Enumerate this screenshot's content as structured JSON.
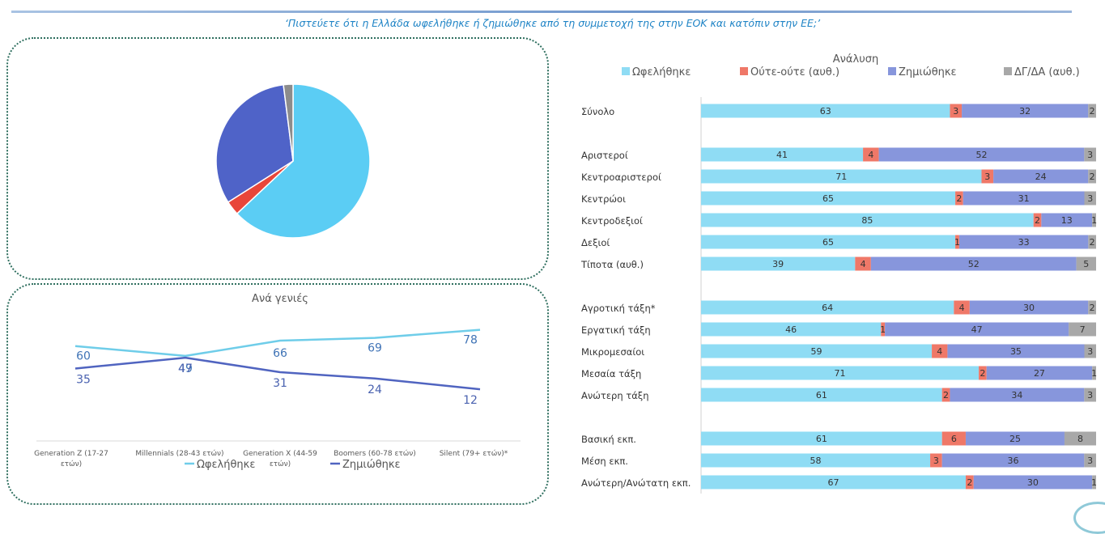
{
  "question": "‘Πιστεύετε ότι η Ελλάδα ωφελήθηκε ή ζημιώθηκε από τη συμμετοχή της στην ΕΟΚ και κατόπιν στην ΕΕ;’",
  "colors": {
    "benefited": "#5bcdf4",
    "neither": "#e8463a",
    "harmed": "#4f63c8",
    "dk": "#8c8c8c",
    "bar_benefited": "#8fdcf4",
    "bar_neither": "#ef7868",
    "bar_harmed": "#8796dc",
    "bar_dk": "#a8a8a8",
    "line_benefited": "#6fcde9",
    "line_harmed": "#5064c0"
  },
  "chart_data": [
    {
      "id": "pie",
      "type": "pie",
      "slices": [
        {
          "key": "benefited",
          "value": 63
        },
        {
          "key": "neither",
          "value": 3
        },
        {
          "key": "harmed",
          "value": 32
        },
        {
          "key": "dk",
          "value": 2
        }
      ]
    },
    {
      "id": "generations",
      "type": "line",
      "title": "Ανά γενιές",
      "categories": [
        "Generation Z (17-27 ετών)",
        "Millennials (28-43 ετών)",
        "Generation X (44-59 ετών)",
        "Boomers (60-78 ετών)",
        "Silent (79+ ετών)*"
      ],
      "series": [
        {
          "name": "Ωφελήθηκε",
          "key": "line_benefited",
          "values": [
            60,
            49,
            66,
            69,
            78
          ]
        },
        {
          "name": "Ζημιώθηκε",
          "key": "line_harmed",
          "values": [
            35,
            47,
            31,
            24,
            12
          ]
        }
      ],
      "legend": "bottom"
    },
    {
      "id": "breakdown",
      "type": "bar",
      "orientation": "horizontal",
      "stacked": true,
      "title": "Ανάλυση",
      "legend": "top",
      "series": [
        {
          "name": "Ωφελήθηκε",
          "key": "bar_benefited"
        },
        {
          "name": "Ούτε-ούτε (αυθ.)",
          "key": "bar_neither"
        },
        {
          "name": "Ζημιώθηκε",
          "key": "bar_harmed"
        },
        {
          "name": "ΔΓ/ΔΑ (αυθ.)",
          "key": "bar_dk"
        }
      ],
      "groups": [
        [
          {
            "label": "Σύνολο",
            "values": [
              63,
              3,
              32,
              2
            ]
          }
        ],
        [
          {
            "label": "Αριστεροί",
            "values": [
              41,
              4,
              52,
              3
            ]
          },
          {
            "label": "Κεντροαριστεροί",
            "values": [
              71,
              3,
              24,
              2
            ]
          },
          {
            "label": "Κεντρώοι",
            "values": [
              65,
              2,
              31,
              3
            ]
          },
          {
            "label": "Κεντροδεξιοί",
            "values": [
              85,
              2,
              13,
              1
            ]
          },
          {
            "label": "Δεξιοί",
            "values": [
              65,
              1,
              33,
              2
            ]
          },
          {
            "label": "Τίποτα (αυθ.)",
            "values": [
              39,
              4,
              52,
              5
            ]
          }
        ],
        [
          {
            "label": "Αγροτική τάξη*",
            "values": [
              64,
              4,
              30,
              2
            ]
          },
          {
            "label": "Εργατική τάξη",
            "values": [
              46,
              1,
              47,
              7
            ]
          },
          {
            "label": "Μικρομεσαίοι",
            "values": [
              59,
              4,
              35,
              3
            ]
          },
          {
            "label": "Μεσαία τάξη",
            "values": [
              71,
              2,
              27,
              1
            ]
          },
          {
            "label": "Ανώτερη τάξη",
            "values": [
              61,
              2,
              34,
              3
            ]
          }
        ],
        [
          {
            "label": "Βασική εκπ.",
            "values": [
              61,
              6,
              25,
              8
            ]
          },
          {
            "label": "Μέση εκπ.",
            "values": [
              58,
              3,
              36,
              3
            ]
          },
          {
            "label": "Ανώτερη/Ανώτατη εκπ.",
            "values": [
              67,
              2,
              30,
              1
            ]
          }
        ]
      ]
    }
  ]
}
